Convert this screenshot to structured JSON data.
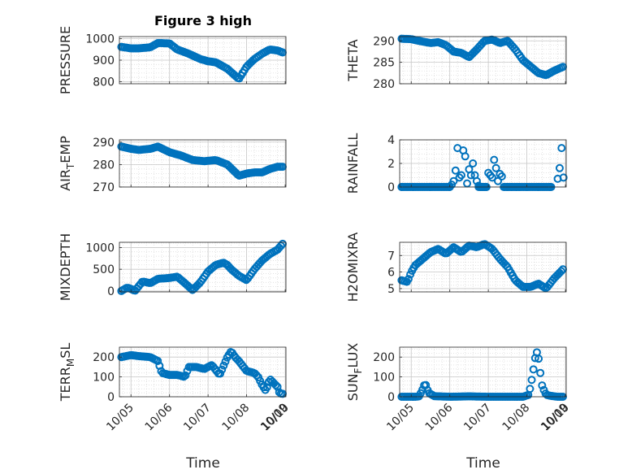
{
  "figure_title": "Figure 3 high",
  "x_axis_label": "Time",
  "colors": {
    "marker": "#0072BD",
    "grid": "#d7d7d7",
    "axis": "#262626"
  },
  "chart_data": [
    {
      "type": "scatter",
      "ylabel_parts": [
        "PRESSURE"
      ],
      "title": "Figure 3 high",
      "xlim": [
        4.7,
        9.02
      ],
      "ylim": [
        790,
        1010
      ],
      "yticks": [
        800,
        900,
        1000
      ],
      "xticks": [],
      "grid": true,
      "x_keys": [
        4.75,
        5.0,
        5.2,
        5.5,
        5.7,
        6.0,
        6.2,
        6.5,
        6.8,
        7.0,
        7.2,
        7.5,
        7.8,
        8.0,
        8.2,
        8.4,
        8.6,
        8.8,
        8.95
      ],
      "y_keys": [
        962,
        955,
        955,
        960,
        980,
        978,
        950,
        930,
        905,
        895,
        890,
        860,
        812,
        870,
        905,
        930,
        950,
        945,
        935
      ]
    },
    {
      "type": "scatter",
      "ylabel_parts": [
        "THETA"
      ],
      "xlim": [
        4.7,
        9.02
      ],
      "ylim": [
        280,
        291
      ],
      "yticks": [
        280,
        285,
        290
      ],
      "xticks": [],
      "grid": true,
      "x_keys": [
        4.75,
        5.0,
        5.2,
        5.5,
        5.7,
        5.9,
        6.1,
        6.3,
        6.5,
        6.7,
        6.9,
        7.1,
        7.3,
        7.5,
        7.7,
        7.9,
        8.1,
        8.3,
        8.5,
        8.7,
        8.95
      ],
      "y_keys": [
        290.5,
        290.4,
        290.0,
        289.5,
        289.7,
        289.0,
        287.5,
        287.2,
        286.2,
        288.0,
        290.0,
        290.3,
        289.5,
        290.0,
        288.0,
        285.5,
        284.0,
        282.5,
        282.0,
        283.0,
        284.0
      ]
    },
    {
      "type": "scatter",
      "ylabel_parts": [
        "AIR",
        "T",
        "EMP"
      ],
      "xlim": [
        4.7,
        9.02
      ],
      "ylim": [
        270,
        291
      ],
      "yticks": [
        270,
        280,
        290
      ],
      "xticks": [],
      "grid": true,
      "x_keys": [
        4.75,
        5.0,
        5.2,
        5.5,
        5.7,
        6.0,
        6.3,
        6.6,
        6.9,
        7.2,
        7.5,
        7.8,
        8.0,
        8.2,
        8.4,
        8.6,
        8.8,
        8.95
      ],
      "y_keys": [
        288.0,
        287.0,
        286.5,
        287.0,
        288.0,
        285.5,
        284.0,
        282.0,
        281.5,
        282.0,
        280.0,
        275.0,
        276.0,
        276.5,
        276.5,
        278.0,
        279.0,
        279.0
      ]
    },
    {
      "type": "scatter",
      "ylabel_parts": [
        "RAINFALL"
      ],
      "xlim": [
        4.7,
        9.02
      ],
      "ylim": [
        0,
        4
      ],
      "yticks": [
        0,
        2,
        4
      ],
      "xticks": [],
      "grid": true,
      "x_keys": [
        4.75,
        5.5,
        6.0,
        6.05,
        6.1,
        6.15,
        6.2,
        6.25,
        6.3,
        6.35,
        6.4,
        6.45,
        6.5,
        6.55,
        6.6,
        6.65,
        6.7,
        6.75,
        6.8,
        6.85,
        6.9,
        6.95,
        7.0,
        7.05,
        7.1,
        7.15,
        7.2,
        7.25,
        7.3,
        7.35,
        7.4,
        7.5,
        7.6,
        7.8,
        8.0,
        8.3,
        8.6,
        8.8,
        8.85,
        8.9,
        8.95
      ],
      "y_keys": [
        0,
        0,
        0,
        0.2,
        0.5,
        1.4,
        3.3,
        0.8,
        1.0,
        3.1,
        2.6,
        0.3,
        1.5,
        1.0,
        2.0,
        1.0,
        0.5,
        0.1,
        0,
        0,
        0,
        0,
        1.2,
        1.0,
        0.8,
        2.3,
        1.6,
        0.5,
        1.1,
        0.9,
        0,
        0,
        0,
        0,
        0,
        0,
        0,
        0.7,
        1.6,
        3.3,
        0.8
      ],
      "points_explicit": true
    },
    {
      "type": "scatter",
      "ylabel_parts": [
        "MIXDEPTH"
      ],
      "xlim": [
        4.7,
        9.02
      ],
      "ylim": [
        -20,
        1120
      ],
      "yticks": [
        0,
        500,
        1000
      ],
      "xticks": [],
      "grid": true,
      "x_keys": [
        4.75,
        4.9,
        5.0,
        5.1,
        5.3,
        5.5,
        5.7,
        6.0,
        6.2,
        6.4,
        6.6,
        6.8,
        7.0,
        7.2,
        7.4,
        7.5,
        7.6,
        7.8,
        8.0,
        8.2,
        8.4,
        8.6,
        8.8,
        8.95
      ],
      "y_keys": [
        0,
        80,
        50,
        0,
        220,
        180,
        280,
        300,
        330,
        180,
        20,
        200,
        450,
        600,
        650,
        600,
        500,
        350,
        250,
        500,
        700,
        850,
        950,
        1100
      ]
    },
    {
      "type": "scatter",
      "ylabel_parts": [
        "H2OMIXRA"
      ],
      "xlim": [
        4.7,
        9.02
      ],
      "ylim": [
        4.8,
        7.8
      ],
      "yticks": [
        5,
        6,
        7
      ],
      "xticks": [],
      "grid": true,
      "x_keys": [
        4.75,
        4.9,
        5.0,
        5.1,
        5.3,
        5.5,
        5.7,
        5.9,
        6.1,
        6.3,
        6.5,
        6.7,
        6.9,
        7.1,
        7.3,
        7.5,
        7.7,
        7.9,
        8.1,
        8.3,
        8.5,
        8.7,
        8.95
      ],
      "y_keys": [
        5.5,
        5.4,
        6.0,
        6.4,
        6.8,
        7.2,
        7.4,
        7.1,
        7.5,
        7.2,
        7.6,
        7.5,
        7.7,
        7.4,
        6.8,
        6.3,
        5.5,
        5.1,
        5.1,
        5.3,
        5.0,
        5.6,
        6.2
      ]
    },
    {
      "type": "scatter",
      "ylabel_parts": [
        "TERR",
        "M",
        "SL"
      ],
      "xlim": [
        4.7,
        9.02
      ],
      "ylim": [
        0,
        250
      ],
      "yticks": [
        0,
        100,
        200
      ],
      "xticks": [
        "10/05",
        "10/06",
        "10/07",
        "10/08",
        "10/09",
        "10/10"
      ],
      "xlabel": "Time",
      "grid": true,
      "x_keys": [
        4.75,
        5.0,
        5.2,
        5.5,
        5.7,
        5.8,
        6.0,
        6.2,
        6.4,
        6.5,
        6.7,
        6.9,
        7.1,
        7.3,
        7.5,
        7.6,
        7.7,
        7.8,
        8.0,
        8.2,
        8.3,
        8.4,
        8.5,
        8.6,
        8.7,
        8.8,
        8.85,
        8.9,
        8.95
      ],
      "y_keys": [
        200,
        210,
        205,
        200,
        180,
        120,
        110,
        110,
        100,
        150,
        150,
        140,
        160,
        110,
        200,
        230,
        200,
        180,
        130,
        120,
        100,
        60,
        30,
        90,
        70,
        50,
        20,
        15,
        15
      ]
    },
    {
      "type": "scatter",
      "ylabel_parts": [
        "SUN",
        "F",
        "LUX"
      ],
      "xlim": [
        4.7,
        9.02
      ],
      "ylim": [
        0,
        250
      ],
      "yticks": [
        0,
        100,
        200
      ],
      "xticks": [
        "10/05",
        "10/06",
        "10/07",
        "10/08",
        "10/09",
        "10/10"
      ],
      "xlabel": "Time",
      "grid": true,
      "x_keys": [
        4.75,
        5.1,
        5.2,
        5.28,
        5.36,
        5.45,
        5.6,
        6.0,
        6.5,
        7.0,
        7.5,
        7.9,
        8.05,
        8.1,
        8.15,
        8.2,
        8.25,
        8.3,
        8.35,
        8.4,
        8.5,
        8.6,
        8.8,
        8.95
      ],
      "y_keys": [
        0,
        0,
        2,
        30,
        70,
        20,
        3,
        0,
        2,
        0,
        0,
        0,
        10,
        60,
        110,
        180,
        230,
        200,
        120,
        50,
        10,
        5,
        0,
        0
      ],
      "points_explicit_interp": true
    }
  ]
}
